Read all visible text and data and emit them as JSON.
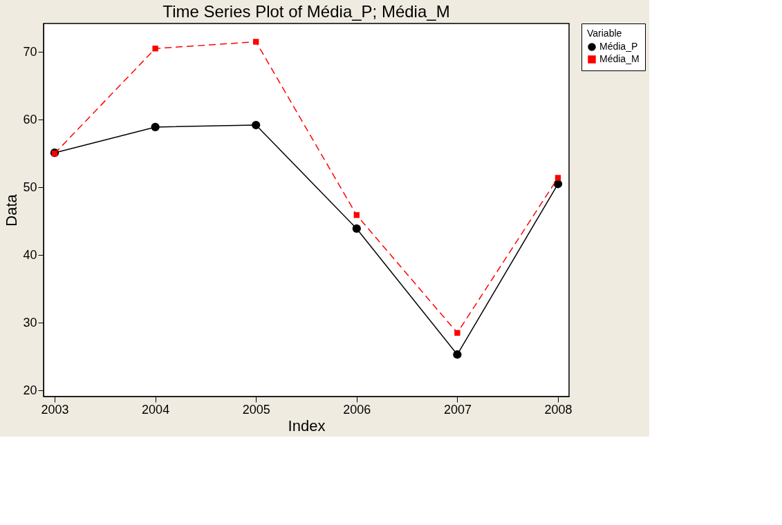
{
  "chart_data": {
    "type": "line",
    "title": "Time Series Plot of Média_P; Média_M",
    "xlabel": "Index",
    "ylabel": "Data",
    "legend_title": "Variable",
    "categories": [
      "2003",
      "2004",
      "2005",
      "2006",
      "2007",
      "2008"
    ],
    "series": [
      {
        "name": "Média_P",
        "color": "#000000",
        "marker": "circle",
        "line_style": "solid",
        "values": [
          55.1,
          58.9,
          59.2,
          43.9,
          25.3,
          50.5
        ]
      },
      {
        "name": "Média_M",
        "color": "#ff0000",
        "marker": "square",
        "line_style": "dashed",
        "values": [
          55.0,
          70.5,
          71.5,
          45.9,
          28.5,
          51.4
        ]
      }
    ],
    "ylim": [
      19.1,
      74.2
    ],
    "yticks": [
      20,
      30,
      40,
      50,
      60,
      70
    ],
    "grid": false,
    "legend": "right"
  }
}
